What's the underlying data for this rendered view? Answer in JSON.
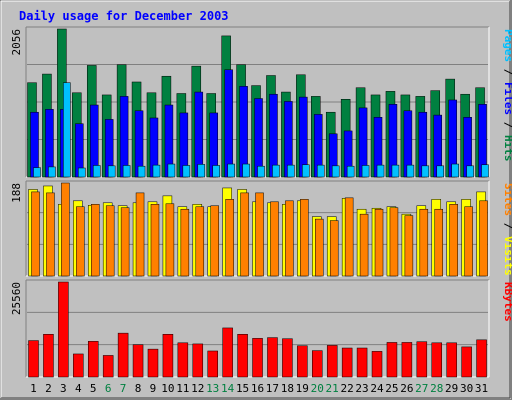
{
  "title": "Daily usage for December 2003",
  "colors": {
    "background": "#c0c0c0",
    "title": "#0000ff",
    "hits": "#008040",
    "files": "#0000ff",
    "pages": "#00c0ff",
    "visits": "#ffff00",
    "sites": "#ff8000",
    "kbytes": "#ff0000",
    "weekend_label": "#008040",
    "weekday_label": "#000000"
  },
  "chart_data": [
    {
      "type": "bar",
      "panel": "top",
      "ymax_label": "2056",
      "ylim": [
        0,
        2056
      ],
      "categories": [
        "1",
        "2",
        "3",
        "4",
        "5",
        "6",
        "7",
        "8",
        "9",
        "10",
        "11",
        "12",
        "13",
        "14",
        "15",
        "16",
        "17",
        "18",
        "19",
        "20",
        "21",
        "22",
        "23",
        "24",
        "25",
        "26",
        "27",
        "28",
        "29",
        "30",
        "31"
      ],
      "legend": [
        {
          "text": "Pages",
          "color_key": "pages"
        },
        {
          "text": " / ",
          "color_key": "weekday_label"
        },
        {
          "text": "Files",
          "color_key": "files"
        },
        {
          "text": " / ",
          "color_key": "weekday_label"
        },
        {
          "text": "Hits",
          "color_key": "hits"
        }
      ],
      "series": [
        {
          "name": "Hits",
          "color_key": "hits",
          "values": [
            1310,
            1430,
            2056,
            1170,
            1550,
            1140,
            1560,
            1320,
            1170,
            1400,
            1160,
            1540,
            1160,
            1960,
            1560,
            1270,
            1410,
            1180,
            1420,
            1120,
            900,
            1080,
            1240,
            1140,
            1190,
            1140,
            1120,
            1200,
            1360,
            1150,
            1240
          ]
        },
        {
          "name": "Files",
          "color_key": "files",
          "values": [
            900,
            940,
            940,
            740,
            1000,
            800,
            1120,
            920,
            820,
            1000,
            890,
            1180,
            890,
            1490,
            1260,
            1090,
            1150,
            1050,
            1110,
            870,
            600,
            640,
            960,
            830,
            1010,
            920,
            900,
            860,
            1070,
            830,
            1010
          ]
        },
        {
          "name": "Pages",
          "color_key": "pages",
          "values": [
            130,
            140,
            1310,
            125,
            160,
            155,
            160,
            150,
            165,
            180,
            160,
            175,
            160,
            180,
            180,
            150,
            165,
            165,
            170,
            165,
            155,
            150,
            160,
            165,
            165,
            165,
            155,
            155,
            180,
            155,
            170
          ]
        }
      ]
    },
    {
      "type": "bar",
      "panel": "middle",
      "ymax_label": "188",
      "ylim": [
        0,
        188
      ],
      "categories": [
        "1",
        "2",
        "3",
        "4",
        "5",
        "6",
        "7",
        "8",
        "9",
        "10",
        "11",
        "12",
        "13",
        "14",
        "15",
        "16",
        "17",
        "18",
        "19",
        "20",
        "21",
        "22",
        "23",
        "24",
        "25",
        "26",
        "27",
        "28",
        "29",
        "30",
        "31"
      ],
      "legend": [
        {
          "text": "Sites",
          "color_key": "sites"
        },
        {
          "text": " / ",
          "color_key": "weekday_label"
        },
        {
          "text": "Visits",
          "color_key": "visits"
        }
      ],
      "series": [
        {
          "name": "Visits",
          "color_key": "visits",
          "values": [
            175,
            182,
            145,
            152,
            143,
            148,
            142,
            148,
            150,
            162,
            140,
            145,
            140,
            178,
            175,
            150,
            148,
            145,
            152,
            120,
            120,
            157,
            135,
            137,
            140,
            125,
            142,
            155,
            150,
            155,
            170
          ]
        },
        {
          "name": "Sites",
          "color_key": "sites",
          "values": [
            170,
            168,
            188,
            140,
            145,
            142,
            138,
            168,
            145,
            146,
            135,
            140,
            142,
            155,
            168,
            168,
            150,
            152,
            155,
            115,
            112,
            158,
            125,
            135,
            138,
            122,
            135,
            135,
            145,
            140,
            152
          ]
        }
      ]
    },
    {
      "type": "bar",
      "panel": "bottom",
      "ymax_label": "25560",
      "ylim": [
        0,
        25560
      ],
      "categories": [
        "1",
        "2",
        "3",
        "4",
        "5",
        "6",
        "7",
        "8",
        "9",
        "10",
        "11",
        "12",
        "13",
        "14",
        "15",
        "16",
        "17",
        "18",
        "19",
        "20",
        "21",
        "22",
        "23",
        "24",
        "25",
        "26",
        "27",
        "28",
        "29",
        "30",
        "31"
      ],
      "legend": [
        {
          "text": "KBytes",
          "color_key": "kbytes"
        }
      ],
      "series": [
        {
          "name": "KBytes",
          "color_key": "kbytes",
          "values": [
            9800,
            11500,
            25560,
            6200,
            9600,
            5800,
            11800,
            8700,
            7500,
            11500,
            9200,
            8900,
            7000,
            13200,
            11500,
            10400,
            10600,
            10300,
            8400,
            7100,
            8500,
            7800,
            7800,
            6900,
            9300,
            9300,
            9500,
            9200,
            9200,
            8100,
            10000
          ]
        }
      ]
    }
  ],
  "day_labels": [
    {
      "text": "1",
      "weekend": false
    },
    {
      "text": "2",
      "weekend": false
    },
    {
      "text": "3",
      "weekend": false
    },
    {
      "text": "4",
      "weekend": false
    },
    {
      "text": "5",
      "weekend": false
    },
    {
      "text": "6",
      "weekend": true
    },
    {
      "text": "7",
      "weekend": true
    },
    {
      "text": "8",
      "weekend": false
    },
    {
      "text": "9",
      "weekend": false
    },
    {
      "text": "10",
      "weekend": false
    },
    {
      "text": "11",
      "weekend": false
    },
    {
      "text": "12",
      "weekend": false
    },
    {
      "text": "13",
      "weekend": true
    },
    {
      "text": "14",
      "weekend": true
    },
    {
      "text": "15",
      "weekend": false
    },
    {
      "text": "16",
      "weekend": false
    },
    {
      "text": "17",
      "weekend": false
    },
    {
      "text": "18",
      "weekend": false
    },
    {
      "text": "19",
      "weekend": false
    },
    {
      "text": "20",
      "weekend": true
    },
    {
      "text": "21",
      "weekend": true
    },
    {
      "text": "22",
      "weekend": false
    },
    {
      "text": "23",
      "weekend": false
    },
    {
      "text": "24",
      "weekend": false
    },
    {
      "text": "25",
      "weekend": false
    },
    {
      "text": "26",
      "weekend": false
    },
    {
      "text": "27",
      "weekend": true
    },
    {
      "text": "28",
      "weekend": true
    },
    {
      "text": "29",
      "weekend": false
    },
    {
      "text": "30",
      "weekend": false
    },
    {
      "text": "31",
      "weekend": false
    }
  ]
}
